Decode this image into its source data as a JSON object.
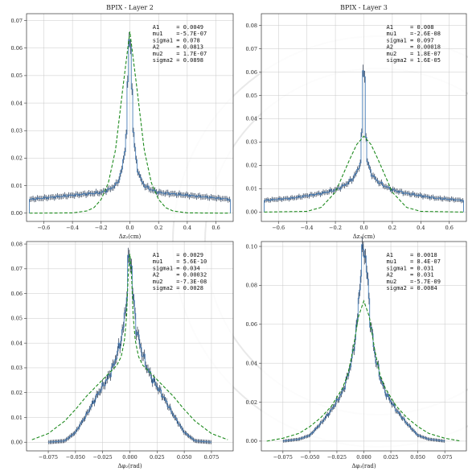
{
  "colors": {
    "histogram": "#4a7fb8",
    "fit": "#1d8a1d",
    "errorbars": "#1c2c44",
    "grid": "#c8c8c8"
  },
  "chart_data": [
    {
      "type": "line",
      "title": "BPIX - Layer 2",
      "xlabel": "Δz₂(cm)",
      "ylabel": "",
      "xlim": [
        -0.72,
        0.72
      ],
      "ylim": [
        -0.003,
        0.0725
      ],
      "xticks": [
        -0.6,
        -0.4,
        -0.2,
        0.0,
        0.2,
        0.4,
        0.6
      ],
      "xtick_labels": [
        "−0.6",
        "−0.4",
        "−0.2",
        "0.0",
        "0.2",
        "0.4",
        "0.6"
      ],
      "yticks": [
        0.0,
        0.01,
        0.02,
        0.03,
        0.04,
        0.05,
        0.06,
        0.07
      ],
      "ytick_labels": [
        "0.00",
        "0.01",
        "0.02",
        "0.03",
        "0.04",
        "0.05",
        "0.06",
        "0.07"
      ],
      "grid": true,
      "fit_params": [
        "A1     = 0.0049",
        "mu1    =-5.7E-07",
        "sigma1 = 0.078",
        "A2     = 0.0813",
        "mu2    = 1.7E-07",
        "sigma2 = 0.0898"
      ],
      "series": [
        {
          "kind": "histogram",
          "x": [
            -0.7,
            -0.6,
            -0.5,
            -0.4,
            -0.3,
            -0.2,
            -0.15,
            -0.1,
            -0.07,
            -0.05,
            -0.03,
            -0.02,
            -0.01,
            0.0,
            0.01,
            0.02,
            0.03,
            0.05,
            0.07,
            0.1,
            0.15,
            0.2,
            0.3,
            0.4,
            0.5,
            0.6,
            0.7
          ],
          "y": [
            0.005,
            0.0055,
            0.006,
            0.0065,
            0.007,
            0.0075,
            0.0085,
            0.01,
            0.013,
            0.017,
            0.025,
            0.035,
            0.055,
            0.07,
            0.055,
            0.035,
            0.025,
            0.017,
            0.013,
            0.01,
            0.0085,
            0.0075,
            0.007,
            0.0065,
            0.006,
            0.0055,
            0.005
          ]
        },
        {
          "kind": "fit",
          "x": [
            -0.7,
            -0.4,
            -0.3,
            -0.25,
            -0.2,
            -0.15,
            -0.1,
            -0.05,
            0.0,
            0.05,
            0.1,
            0.15,
            0.2,
            0.25,
            0.3,
            0.4,
            0.7
          ],
          "y": [
            0.0,
            0.0001,
            0.0008,
            0.002,
            0.005,
            0.011,
            0.023,
            0.045,
            0.066,
            0.045,
            0.023,
            0.011,
            0.005,
            0.002,
            0.0008,
            0.0001,
            0.0
          ]
        }
      ]
    },
    {
      "type": "line",
      "title": "BPIX - Layer 3",
      "xlabel": "Δz₃(cm)",
      "ylabel": "",
      "xlim": [
        -0.72,
        0.72
      ],
      "ylim": [
        -0.004,
        0.085
      ],
      "xticks": [
        -0.6,
        -0.4,
        -0.2,
        0.0,
        0.2,
        0.4,
        0.6
      ],
      "xtick_labels": [
        "−0.6",
        "−0.4",
        "−0.2",
        "0.0",
        "0.2",
        "0.4",
        "0.6"
      ],
      "yticks": [
        0.0,
        0.01,
        0.02,
        0.03,
        0.04,
        0.05,
        0.06,
        0.07,
        0.08
      ],
      "ytick_labels": [
        "0.00",
        "0.01",
        "0.02",
        "0.03",
        "0.04",
        "0.05",
        "0.06",
        "0.07",
        "0.08"
      ],
      "grid": true,
      "fit_params": [
        "A1     = 0.008",
        "mu1    =-2.6E-08",
        "sigma1 = 0.097",
        "A2     = 0.00018",
        "mu2    = 1.8E-07",
        "sigma2 = 1.6E-05"
      ],
      "series": [
        {
          "kind": "histogram",
          "x": [
            -0.7,
            -0.6,
            -0.5,
            -0.4,
            -0.3,
            -0.2,
            -0.15,
            -0.1,
            -0.07,
            -0.05,
            -0.03,
            -0.02,
            -0.01,
            0.0,
            0.01,
            0.02,
            0.03,
            0.05,
            0.07,
            0.1,
            0.15,
            0.2,
            0.3,
            0.4,
            0.5,
            0.6,
            0.7
          ],
          "y": [
            0.005,
            0.0055,
            0.006,
            0.007,
            0.008,
            0.0095,
            0.011,
            0.013,
            0.015,
            0.017,
            0.02,
            0.024,
            0.04,
            0.08,
            0.04,
            0.024,
            0.02,
            0.017,
            0.015,
            0.013,
            0.011,
            0.0095,
            0.008,
            0.007,
            0.006,
            0.0055,
            0.005
          ]
        },
        {
          "kind": "fit",
          "x": [
            -0.7,
            -0.4,
            -0.3,
            -0.2,
            -0.15,
            -0.1,
            -0.05,
            0.0,
            0.05,
            0.1,
            0.15,
            0.2,
            0.3,
            0.4,
            0.7
          ],
          "y": [
            0.0,
            0.0003,
            0.002,
            0.0085,
            0.0155,
            0.0225,
            0.029,
            0.0325,
            0.029,
            0.0225,
            0.0155,
            0.0085,
            0.002,
            0.0003,
            0.0
          ]
        }
      ]
    },
    {
      "type": "line",
      "title": "",
      "xlabel": "Δφ₂(rad)",
      "ylabel": "",
      "xlim": [
        -0.095,
        0.095
      ],
      "ylim": [
        -0.0035,
        0.081
      ],
      "xticks": [
        -0.075,
        -0.05,
        -0.025,
        0.0,
        0.025,
        0.05,
        0.075
      ],
      "xtick_labels": [
        "−0.075",
        "−0.050",
        "−0.025",
        "0.000",
        "0.025",
        "0.050",
        "0.075"
      ],
      "yticks": [
        0.0,
        0.01,
        0.02,
        0.03,
        0.04,
        0.05,
        0.06,
        0.07,
        0.08
      ],
      "ytick_labels": [
        "0.00",
        "0.01",
        "0.02",
        "0.03",
        "0.04",
        "0.05",
        "0.06",
        "0.07",
        "0.08"
      ],
      "grid": true,
      "fit_params": [
        "A1     = 0.0029",
        "mu1    = 5.6E-10",
        "sigma1 = 0.034",
        "A2     = 0.00032",
        "mu2    =-7.3E-08",
        "sigma2 = 0.0028"
      ],
      "series": [
        {
          "kind": "histogram",
          "x": [
            -0.075,
            -0.06,
            -0.05,
            -0.04,
            -0.03,
            -0.02,
            -0.015,
            -0.01,
            -0.006,
            -0.003,
            -0.0015,
            0.0,
            0.0015,
            0.003,
            0.006,
            0.01,
            0.015,
            0.02,
            0.03,
            0.04,
            0.05,
            0.06,
            0.075
          ],
          "y": [
            0.0,
            0.0005,
            0.004,
            0.011,
            0.019,
            0.026,
            0.031,
            0.038,
            0.046,
            0.058,
            0.072,
            0.075,
            0.072,
            0.058,
            0.046,
            0.038,
            0.031,
            0.026,
            0.019,
            0.011,
            0.004,
            0.0005,
            0.0
          ]
        },
        {
          "kind": "fit",
          "x": [
            -0.09,
            -0.075,
            -0.06,
            -0.05,
            -0.04,
            -0.03,
            -0.02,
            -0.012,
            -0.008,
            -0.005,
            -0.003,
            -0.0015,
            0.0,
            0.0015,
            0.003,
            0.005,
            0.008,
            0.012,
            0.02,
            0.03,
            0.04,
            0.05,
            0.06,
            0.075,
            0.09
          ],
          "y": [
            0.001,
            0.0035,
            0.0085,
            0.0132,
            0.0185,
            0.023,
            0.0275,
            0.031,
            0.0345,
            0.041,
            0.051,
            0.068,
            0.076,
            0.068,
            0.051,
            0.041,
            0.0345,
            0.031,
            0.0275,
            0.023,
            0.0185,
            0.0132,
            0.0085,
            0.0035,
            0.001
          ]
        }
      ]
    },
    {
      "type": "line",
      "title": "",
      "xlabel": "Δφ₃(rad)",
      "ylabel": "",
      "xlim": [
        -0.095,
        0.095
      ],
      "ylim": [
        -0.005,
        0.1025
      ],
      "xticks": [
        -0.075,
        -0.05,
        -0.025,
        0.0,
        0.025,
        0.05,
        0.075
      ],
      "xtick_labels": [
        "−0.075",
        "−0.050",
        "−0.025",
        "0.000",
        "0.025",
        "0.050",
        "0.075"
      ],
      "yticks": [
        0.0,
        0.02,
        0.04,
        0.06,
        0.08,
        0.1
      ],
      "ytick_labels": [
        "0.00",
        "0.02",
        "0.04",
        "0.06",
        "0.08",
        "0.10"
      ],
      "grid": true,
      "fit_params": [
        "A1     = 0.0018",
        "mu1    = 8.4E-07",
        "sigma1 = 0.031",
        "A2     = 0.031",
        "mu2    =-5.7E-09",
        "sigma2 = 0.0084"
      ],
      "series": [
        {
          "kind": "histogram",
          "x": [
            -0.075,
            -0.06,
            -0.05,
            -0.04,
            -0.03,
            -0.02,
            -0.015,
            -0.01,
            -0.006,
            -0.004,
            -0.002,
            0.0,
            0.002,
            0.004,
            0.006,
            0.01,
            0.015,
            0.02,
            0.03,
            0.04,
            0.05,
            0.06,
            0.075
          ],
          "y": [
            0.0,
            0.001,
            0.003,
            0.009,
            0.016,
            0.025,
            0.033,
            0.045,
            0.062,
            0.078,
            0.094,
            0.099,
            0.094,
            0.078,
            0.062,
            0.045,
            0.033,
            0.025,
            0.016,
            0.009,
            0.003,
            0.001,
            0.0
          ]
        },
        {
          "kind": "fit",
          "x": [
            -0.09,
            -0.075,
            -0.06,
            -0.05,
            -0.04,
            -0.03,
            -0.02,
            -0.015,
            -0.01,
            -0.005,
            0.0,
            0.005,
            0.01,
            0.015,
            0.02,
            0.03,
            0.04,
            0.05,
            0.06,
            0.075,
            0.09
          ],
          "y": [
            0.0,
            0.0015,
            0.004,
            0.0075,
            0.012,
            0.018,
            0.027,
            0.034,
            0.047,
            0.064,
            0.072,
            0.064,
            0.047,
            0.034,
            0.027,
            0.018,
            0.012,
            0.0075,
            0.004,
            0.0015,
            0.0
          ]
        }
      ]
    }
  ]
}
